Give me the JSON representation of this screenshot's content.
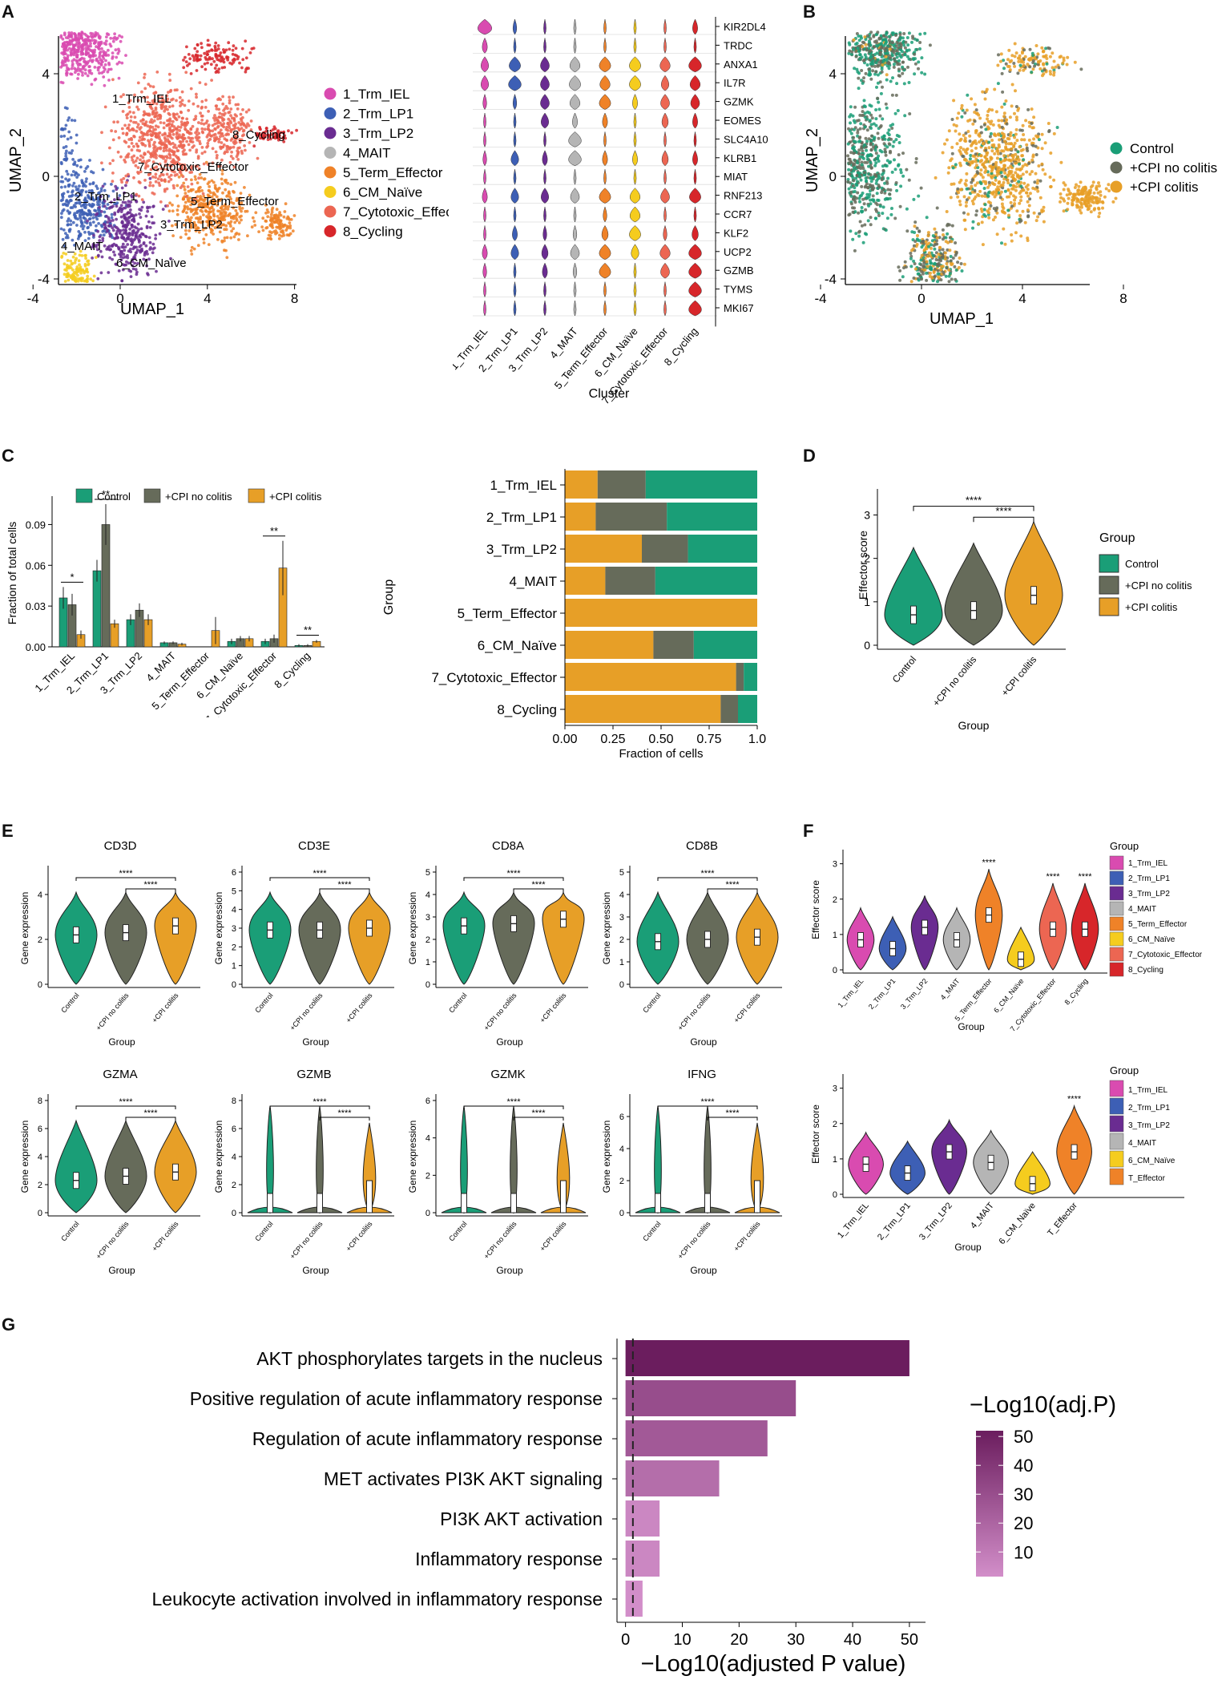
{
  "colors": {
    "control": "#1a9e77",
    "no_colitis": "#666b5a",
    "colitis": "#e79f27",
    "clusters": [
      "#d94bb0",
      "#3d5fb5",
      "#6a2c91",
      "#b5b5b5",
      "#ef8228",
      "#f5cc1e",
      "#ec6652",
      "#d7262a"
    ],
    "enrich_dark": "#6b1d5e",
    "enrich_light": "#d28ec9"
  },
  "panels": {
    "A": "A",
    "B": "B",
    "C": "C",
    "D": "D",
    "E": "E",
    "F": "F",
    "G": "G"
  },
  "umap": {
    "xlabel": "UMAP_1",
    "ylabel": "UMAP_2",
    "xticks": [
      "-4",
      "0",
      "4",
      "8"
    ],
    "yticks": [
      "4",
      "0",
      "-4"
    ],
    "clusters": [
      "1_Trm_IEL",
      "2_Trm_LP1",
      "3_Trm_LP2",
      "4_MAIT",
      "5_Term_Effector",
      "6_CM_Naïve",
      "7_Cytotoxic_Effector",
      "8_Cycling"
    ],
    "cluster_labels": [
      "1_Trm_IEL",
      "2_Trm_LP1",
      "3_Trm_LP2",
      "4_MAIT",
      "5_Term_Effector",
      "6_CM_Naïve",
      "7_Cytotoxic_Effector",
      "8_Cycling"
    ],
    "groups": [
      "Control",
      "+CPI no colitis",
      "+CPI colitis"
    ]
  },
  "stacked_violin": {
    "genes": [
      "KIR2DL4",
      "TRDC",
      "ANXA1",
      "IL7R",
      "GZMK",
      "EOMES",
      "SLC4A10",
      "KLRB1",
      "MIAT",
      "RNF213",
      "CCR7",
      "KLF2",
      "UCP2",
      "GZMB",
      "TYMS",
      "MKI67"
    ],
    "xlabel": "Cluster"
  },
  "chart_data": [
    {
      "id": "C_left",
      "type": "bar",
      "legend": [
        "Control",
        "+CPI no colitis",
        "+CPI colitis"
      ],
      "categories": [
        "1_Trm_IEL",
        "2_Trm_LP1",
        "3_Trm_LP2",
        "4_MAIT",
        "5_Term_Effector",
        "6_CM_Naïve",
        "7_Cytotoxic_Effector",
        "8_Cycling"
      ],
      "series": [
        {
          "name": "Control",
          "values": [
            0.036,
            0.056,
            0.02,
            0.003,
            0.0,
            0.004,
            0.004,
            0.001
          ]
        },
        {
          "name": "+CPI no colitis",
          "values": [
            0.031,
            0.09,
            0.027,
            0.003,
            0.0,
            0.006,
            0.006,
            0.001
          ]
        },
        {
          "name": "+CPI colitis",
          "values": [
            0.009,
            0.017,
            0.02,
            0.002,
            0.012,
            0.006,
            0.058,
            0.004
          ]
        }
      ],
      "errors": [
        [
          0.008,
          0.008,
          0.004,
          0.001,
          0,
          0.002,
          0.002,
          0.001
        ],
        [
          0.008,
          0.015,
          0.005,
          0.001,
          0,
          0.002,
          0.003,
          0.001
        ],
        [
          0.003,
          0.003,
          0.004,
          0.001,
          0.01,
          0.002,
          0.02,
          0.001
        ]
      ],
      "sig": [
        {
          "i": 0,
          "label": "*"
        },
        {
          "i": 1,
          "label": "**"
        },
        {
          "i": 6,
          "label": "**"
        },
        {
          "i": 7,
          "label": "**"
        }
      ],
      "ylabel": "Fraction of total cells",
      "yticks": [
        "0.00",
        "0.03",
        "0.06",
        "0.09"
      ],
      "ylim": [
        0,
        0.105
      ]
    },
    {
      "id": "C_right",
      "type": "bar",
      "orientation": "horizontal-stacked",
      "categories": [
        "1_Trm_IEL",
        "2_Trm_LP1",
        "3_Trm_LP2",
        "4_MAIT",
        "5_Term_Effector",
        "6_CM_Naïve",
        "7_Cytotoxic_Effector",
        "8_Cycling"
      ],
      "series": [
        {
          "name": "+CPI colitis",
          "values": [
            0.17,
            0.16,
            0.4,
            0.21,
            1.0,
            0.46,
            0.89,
            0.81
          ]
        },
        {
          "name": "+CPI no colitis",
          "values": [
            0.25,
            0.37,
            0.24,
            0.26,
            0.0,
            0.21,
            0.04,
            0.09
          ]
        },
        {
          "name": "Control",
          "values": [
            0.58,
            0.47,
            0.36,
            0.53,
            0.0,
            0.33,
            0.07,
            0.1
          ]
        }
      ],
      "xlabel": "Fraction of cells",
      "ylabel": "Group",
      "xticks": [
        "0.00",
        "0.25",
        "0.50",
        "0.75",
        "1.0"
      ]
    },
    {
      "id": "D",
      "type": "violin",
      "categories": [
        "Control",
        "+CPI no colitis",
        "+CPI colitis"
      ],
      "medians": [
        0.7,
        0.8,
        1.15
      ],
      "ylabel": "Effector score",
      "xlabel": "Group",
      "yticks": [
        "0",
        "1",
        "2",
        "3"
      ],
      "ylim": [
        0,
        3.6
      ],
      "legend_title": "Group",
      "legend": [
        "Control",
        "+CPI no colitis",
        "+CPI colitis"
      ],
      "sig": [
        "****",
        "****"
      ]
    },
    {
      "id": "E",
      "type": "violin",
      "categories": [
        "Control",
        "+CPI no colitis",
        "+CPI colitis"
      ],
      "panels": [
        {
          "title": "CD3D",
          "ymax": 5,
          "yticks": [
            "0",
            "2",
            "4"
          ],
          "medians": [
            2.2,
            2.3,
            2.6
          ]
        },
        {
          "title": "CD3E",
          "ymax": 6,
          "yticks": [
            "0",
            "1",
            "2",
            "3",
            "4",
            "5",
            "6"
          ],
          "medians": [
            2.9,
            2.9,
            3.0
          ]
        },
        {
          "title": "CD8A",
          "ymax": 5,
          "yticks": [
            "0",
            "1",
            "2",
            "3",
            "4",
            "5"
          ],
          "medians": [
            2.6,
            2.7,
            2.9
          ]
        },
        {
          "title": "CD8B",
          "ymax": 5,
          "yticks": [
            "0",
            "1",
            "2",
            "3",
            "4",
            "5"
          ],
          "medians": [
            1.9,
            2.0,
            2.1
          ]
        },
        {
          "title": "GZMA",
          "ymax": 8,
          "yticks": [
            "0",
            "2",
            "4",
            "6",
            "8"
          ],
          "medians": [
            2.3,
            2.6,
            2.9
          ]
        },
        {
          "title": "GZMB",
          "ymax": 8,
          "yticks": [
            "0",
            "2",
            "4",
            "6",
            "8"
          ],
          "medians": [
            0.1,
            0.2,
            2.0
          ]
        },
        {
          "title": "GZMK",
          "ymax": 6,
          "yticks": [
            "0",
            "2",
            "4",
            "6"
          ],
          "medians": [
            0.1,
            0.2,
            0.3
          ]
        },
        {
          "title": "IFNG",
          "ymax": 7,
          "yticks": [
            "0",
            "2",
            "4",
            "6"
          ],
          "medians": [
            0.1,
            0.2,
            1.5
          ]
        }
      ],
      "ylabel": "Gene expression",
      "xlabel": "Group",
      "sig": [
        "****",
        "****"
      ]
    },
    {
      "id": "F_top",
      "type": "violin",
      "categories": [
        "1_Trm_IEL",
        "2_Trm_LP1",
        "3_Trm_LP2",
        "4_MAIT",
        "5_Term_Effector",
        "6_CM_Naïve",
        "7_Cytotoxic_Effector",
        "8_Cycling"
      ],
      "medians": [
        0.85,
        0.6,
        1.2,
        0.85,
        1.55,
        0.3,
        1.15,
        1.15
      ],
      "sig": [
        "",
        "",
        "",
        "",
        "****",
        "",
        "****",
        "****"
      ],
      "ylabel": "Effector score",
      "xlabel": "Group",
      "yticks": [
        "0",
        "1",
        "2",
        "3"
      ],
      "ylim": [
        0,
        3.4
      ],
      "legend_title": "Group",
      "legend": [
        "1_Trm_IEL",
        "2_Trm_LP1",
        "3_Trm_LP2",
        "4_MAIT",
        "5_Term_Effector",
        "6_CM_Naïve",
        "7_Cytotoxic_Effector",
        "8_Cycling"
      ]
    },
    {
      "id": "F_bottom",
      "type": "violin",
      "categories": [
        "1_Trm_IEL",
        "2_Trm_LP1",
        "3_Trm_LP2",
        "4_MAIT",
        "6_CM_Naïve",
        "T_Effector"
      ],
      "medians": [
        0.85,
        0.6,
        1.2,
        0.9,
        0.3,
        1.2
      ],
      "sig": [
        "",
        "",
        "",
        "",
        "",
        "****"
      ],
      "ylabel": "Effector score",
      "xlabel": "Group",
      "yticks": [
        "0",
        "1",
        "2",
        "3"
      ],
      "ylim": [
        0,
        3.4
      ],
      "legend_title": "Group",
      "legend": [
        "1_Trm_IEL",
        "2_Trm_LP1",
        "3_Trm_LP2",
        "4_MAIT",
        "6_CM_Naïve",
        "T_Effector"
      ]
    },
    {
      "id": "G",
      "type": "bar",
      "orientation": "horizontal",
      "categories": [
        "AKT phosphorylates targets in the nucleus",
        "Positive regulation of acute inflammatory response",
        "Regulation of acute inflammatory response",
        "MET activates PI3K AKT signaling",
        "PI3K AKT activation",
        "Inflammatory response",
        "Leukocyte activation involved in inflammatory response"
      ],
      "values": [
        50,
        30,
        25,
        16.5,
        6,
        6,
        3
      ],
      "xlabel": "−Log10(adjusted P value)",
      "xticks": [
        "0",
        "10",
        "20",
        "30",
        "40",
        "50"
      ],
      "xlim": [
        -1.5,
        52
      ],
      "threshold": 1.3,
      "colorbar_title": "−Log10(adj.P)",
      "colorbar_ticks": [
        "50",
        "40",
        "30",
        "20",
        "10"
      ]
    }
  ]
}
